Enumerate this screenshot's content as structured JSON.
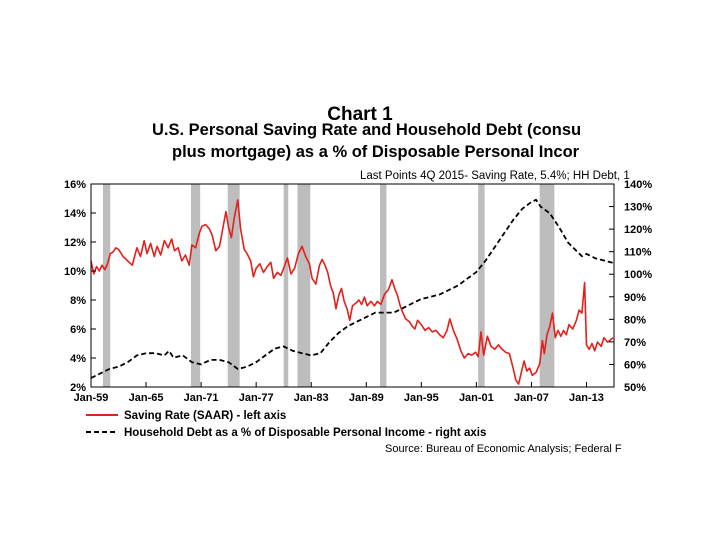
{
  "slide_title": "Chart 1",
  "chart_data": {
    "type": "line",
    "title_line1": "U.S. Personal Saving Rate and Household Debt (consu",
    "title_line2": "plus mortgage) as a % of Disposable Personal Incor",
    "subtitle": "Last Points 4Q 2015- Saving Rate, 5.4%; HH Debt, 1",
    "source": "Source: Bureau of Economic Analysis; Federal F",
    "x_tick_labels": [
      "Jan-59",
      "Jan-65",
      "Jan-71",
      "Jan-77",
      "Jan-83",
      "Jan-89",
      "Jan-95",
      "Jan-01",
      "Jan-07",
      "Jan-13"
    ],
    "x_tick_years": [
      1959,
      1965,
      1971,
      1977,
      1983,
      1989,
      1995,
      2001,
      2007,
      2013
    ],
    "xlim": [
      1959,
      2016
    ],
    "y_left": {
      "ticks": [
        "16%",
        "14%",
        "12%",
        "10%",
        "8%",
        "6%",
        "4%",
        "2%"
      ],
      "tick_values": [
        16,
        14,
        12,
        10,
        8,
        6,
        4,
        2
      ],
      "lim": [
        2,
        16
      ]
    },
    "y_right": {
      "ticks": [
        "140%",
        "130%",
        "120%",
        "110%",
        "100%",
        "90%",
        "80%",
        "70%",
        "60%",
        "50%"
      ],
      "tick_values": [
        140,
        130,
        120,
        110,
        100,
        90,
        80,
        70,
        60,
        50
      ],
      "lim": [
        50,
        140
      ]
    },
    "recessions": [
      [
        1960.3,
        1961.1
      ],
      [
        1969.9,
        1970.9
      ],
      [
        1973.9,
        1975.2
      ],
      [
        1980.0,
        1980.5
      ],
      [
        1981.5,
        1982.9
      ],
      [
        1990.5,
        1991.2
      ],
      [
        2001.2,
        2001.9
      ],
      [
        2007.9,
        2009.5
      ]
    ],
    "series": [
      {
        "name": "Saving Rate (SAAR) - left axis",
        "axis": "left",
        "color": "#e3201b",
        "style": "solid",
        "points": [
          [
            1959.0,
            10.7
          ],
          [
            1959.3,
            9.8
          ],
          [
            1959.6,
            10.3
          ],
          [
            1959.9,
            10.0
          ],
          [
            1960.2,
            10.4
          ],
          [
            1960.5,
            10.1
          ],
          [
            1960.8,
            10.5
          ],
          [
            1961.1,
            11.2
          ],
          [
            1961.4,
            11.3
          ],
          [
            1961.7,
            11.6
          ],
          [
            1962.0,
            11.5
          ],
          [
            1962.5,
            11.0
          ],
          [
            1963.0,
            10.7
          ],
          [
            1963.5,
            10.4
          ],
          [
            1964.0,
            11.6
          ],
          [
            1964.4,
            11.0
          ],
          [
            1964.8,
            12.1
          ],
          [
            1965.1,
            11.2
          ],
          [
            1965.5,
            11.9
          ],
          [
            1965.9,
            11.0
          ],
          [
            1966.2,
            11.7
          ],
          [
            1966.6,
            11.1
          ],
          [
            1967.0,
            12.1
          ],
          [
            1967.4,
            11.6
          ],
          [
            1967.8,
            12.2
          ],
          [
            1968.1,
            11.4
          ],
          [
            1968.5,
            11.6
          ],
          [
            1968.9,
            10.7
          ],
          [
            1969.3,
            11.1
          ],
          [
            1969.7,
            10.4
          ],
          [
            1970.0,
            11.8
          ],
          [
            1970.4,
            11.6
          ],
          [
            1970.8,
            12.6
          ],
          [
            1971.1,
            13.1
          ],
          [
            1971.5,
            13.2
          ],
          [
            1971.9,
            12.9
          ],
          [
            1972.2,
            12.5
          ],
          [
            1972.6,
            11.4
          ],
          [
            1973.0,
            11.7
          ],
          [
            1973.3,
            12.7
          ],
          [
            1973.7,
            14.1
          ],
          [
            1974.0,
            13.0
          ],
          [
            1974.3,
            12.3
          ],
          [
            1974.6,
            13.6
          ],
          [
            1975.0,
            14.9
          ],
          [
            1975.3,
            12.9
          ],
          [
            1975.7,
            11.5
          ],
          [
            1976.0,
            11.2
          ],
          [
            1976.4,
            10.7
          ],
          [
            1976.7,
            9.6
          ],
          [
            1977.0,
            10.2
          ],
          [
            1977.4,
            10.5
          ],
          [
            1977.8,
            9.9
          ],
          [
            1978.2,
            10.3
          ],
          [
            1978.6,
            10.6
          ],
          [
            1978.9,
            9.5
          ],
          [
            1979.3,
            9.9
          ],
          [
            1979.7,
            9.7
          ],
          [
            1980.0,
            10.2
          ],
          [
            1980.4,
            10.9
          ],
          [
            1980.8,
            9.8
          ],
          [
            1981.2,
            10.2
          ],
          [
            1981.6,
            11.2
          ],
          [
            1982.0,
            11.7
          ],
          [
            1982.4,
            11.0
          ],
          [
            1982.8,
            10.5
          ],
          [
            1983.1,
            9.5
          ],
          [
            1983.5,
            9.1
          ],
          [
            1983.9,
            10.4
          ],
          [
            1984.2,
            10.8
          ],
          [
            1984.5,
            10.4
          ],
          [
            1984.8,
            9.9
          ],
          [
            1985.1,
            9.0
          ],
          [
            1985.4,
            8.5
          ],
          [
            1985.7,
            7.4
          ],
          [
            1986.0,
            8.3
          ],
          [
            1986.3,
            8.8
          ],
          [
            1986.6,
            7.9
          ],
          [
            1986.9,
            7.4
          ],
          [
            1987.2,
            6.6
          ],
          [
            1987.5,
            7.6
          ],
          [
            1987.9,
            7.8
          ],
          [
            1988.2,
            8.0
          ],
          [
            1988.5,
            7.7
          ],
          [
            1988.8,
            8.2
          ],
          [
            1989.1,
            7.6
          ],
          [
            1989.5,
            7.9
          ],
          [
            1989.9,
            7.6
          ],
          [
            1990.2,
            7.9
          ],
          [
            1990.6,
            7.7
          ],
          [
            1991.0,
            8.4
          ],
          [
            1991.4,
            8.7
          ],
          [
            1991.8,
            9.4
          ],
          [
            1992.1,
            8.8
          ],
          [
            1992.4,
            8.3
          ],
          [
            1992.7,
            7.6
          ],
          [
            1993.0,
            7.1
          ],
          [
            1993.3,
            6.7
          ],
          [
            1993.7,
            6.5
          ],
          [
            1994.0,
            6.2
          ],
          [
            1994.3,
            6.0
          ],
          [
            1994.6,
            6.6
          ],
          [
            1995.0,
            6.3
          ],
          [
            1995.4,
            5.9
          ],
          [
            1995.8,
            6.1
          ],
          [
            1996.2,
            5.8
          ],
          [
            1996.6,
            5.9
          ],
          [
            1997.0,
            5.6
          ],
          [
            1997.4,
            5.4
          ],
          [
            1997.8,
            5.9
          ],
          [
            1998.1,
            6.7
          ],
          [
            1998.5,
            5.9
          ],
          [
            1998.9,
            5.3
          ],
          [
            1999.3,
            4.5
          ],
          [
            1999.7,
            4.0
          ],
          [
            2000.1,
            4.3
          ],
          [
            2000.5,
            4.2
          ],
          [
            2000.9,
            4.4
          ],
          [
            2001.2,
            4.1
          ],
          [
            2001.5,
            5.8
          ],
          [
            2001.8,
            4.2
          ],
          [
            2002.2,
            5.5
          ],
          [
            2002.6,
            4.8
          ],
          [
            2003.0,
            4.6
          ],
          [
            2003.4,
            4.9
          ],
          [
            2003.8,
            4.6
          ],
          [
            2004.2,
            4.4
          ],
          [
            2004.6,
            4.3
          ],
          [
            2005.0,
            3.3
          ],
          [
            2005.3,
            2.5
          ],
          [
            2005.6,
            2.2
          ],
          [
            2005.9,
            3.0
          ],
          [
            2006.2,
            3.8
          ],
          [
            2006.5,
            3.1
          ],
          [
            2006.8,
            3.3
          ],
          [
            2007.1,
            2.8
          ],
          [
            2007.5,
            3.0
          ],
          [
            2007.9,
            3.6
          ],
          [
            2008.2,
            5.2
          ],
          [
            2008.4,
            4.3
          ],
          [
            2008.7,
            5.6
          ],
          [
            2009.0,
            6.2
          ],
          [
            2009.3,
            7.1
          ],
          [
            2009.6,
            5.4
          ],
          [
            2009.9,
            5.9
          ],
          [
            2010.2,
            5.5
          ],
          [
            2010.5,
            5.9
          ],
          [
            2010.8,
            5.6
          ],
          [
            2011.1,
            6.3
          ],
          [
            2011.5,
            6.0
          ],
          [
            2011.9,
            6.6
          ],
          [
            2012.2,
            7.3
          ],
          [
            2012.5,
            7.1
          ],
          [
            2012.8,
            9.2
          ],
          [
            2013.0,
            4.9
          ],
          [
            2013.3,
            4.6
          ],
          [
            2013.6,
            5.0
          ],
          [
            2013.9,
            4.5
          ],
          [
            2014.2,
            5.1
          ],
          [
            2014.6,
            4.8
          ],
          [
            2014.9,
            5.4
          ],
          [
            2015.3,
            5.1
          ],
          [
            2015.9,
            5.4
          ]
        ]
      },
      {
        "name": "Household Debt as a % of Disposable Personal Income - right axis",
        "axis": "right",
        "color": "#000000",
        "style": "dashed",
        "points": [
          [
            1959.0,
            54
          ],
          [
            1960.0,
            56
          ],
          [
            1961.0,
            58
          ],
          [
            1962.0,
            59
          ],
          [
            1963.0,
            61
          ],
          [
            1964.0,
            64
          ],
          [
            1965.0,
            65
          ],
          [
            1966.0,
            65
          ],
          [
            1967.0,
            64
          ],
          [
            1967.5,
            66
          ],
          [
            1968.0,
            63
          ],
          [
            1969.0,
            64
          ],
          [
            1970.0,
            61
          ],
          [
            1971.0,
            60
          ],
          [
            1972.0,
            62
          ],
          [
            1973.0,
            62
          ],
          [
            1974.0,
            61
          ],
          [
            1975.0,
            58
          ],
          [
            1976.0,
            59
          ],
          [
            1977.0,
            61
          ],
          [
            1978.0,
            64
          ],
          [
            1979.0,
            67
          ],
          [
            1980.0,
            68
          ],
          [
            1981.0,
            66
          ],
          [
            1982.0,
            65
          ],
          [
            1983.0,
            64
          ],
          [
            1984.0,
            65
          ],
          [
            1985.0,
            70
          ],
          [
            1986.0,
            74
          ],
          [
            1987.0,
            77
          ],
          [
            1988.0,
            79
          ],
          [
            1989.0,
            81
          ],
          [
            1990.0,
            83
          ],
          [
            1991.0,
            83
          ],
          [
            1992.0,
            83
          ],
          [
            1993.0,
            85
          ],
          [
            1994.0,
            87
          ],
          [
            1995.0,
            89
          ],
          [
            1996.0,
            90
          ],
          [
            1997.0,
            91
          ],
          [
            1998.0,
            93
          ],
          [
            1999.0,
            95
          ],
          [
            2000.0,
            98
          ],
          [
            2001.0,
            101
          ],
          [
            2002.0,
            106
          ],
          [
            2003.0,
            112
          ],
          [
            2004.0,
            118
          ],
          [
            2005.0,
            124
          ],
          [
            2006.0,
            129
          ],
          [
            2007.0,
            132
          ],
          [
            2007.5,
            133
          ],
          [
            2008.0,
            130
          ],
          [
            2009.0,
            127
          ],
          [
            2010.0,
            121
          ],
          [
            2011.0,
            114
          ],
          [
            2012.0,
            110
          ],
          [
            2012.5,
            108
          ],
          [
            2013.0,
            109
          ],
          [
            2014.0,
            107
          ],
          [
            2015.0,
            106
          ],
          [
            2015.9,
            105
          ]
        ]
      }
    ],
    "legend_position": "bottom-left"
  }
}
